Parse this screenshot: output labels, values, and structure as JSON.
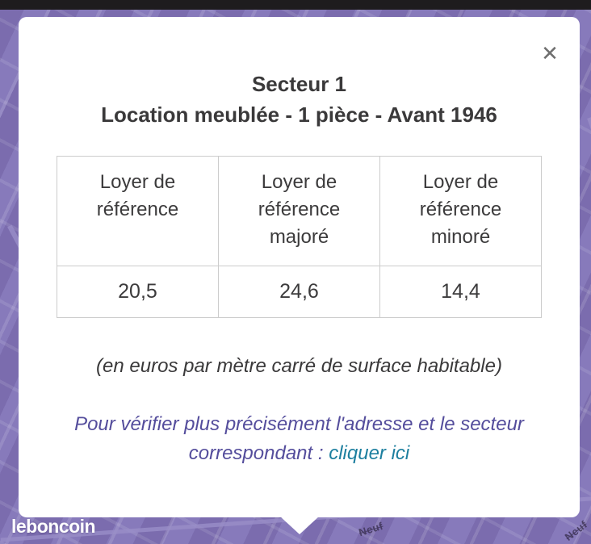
{
  "page": {
    "top_bar_color": "#1e1c1e",
    "map_base_color": "#8377b6",
    "map_block_color": "#7b6cae",
    "map_street_color": "#9a8fc8"
  },
  "map": {
    "brand": "leboncoin",
    "street_labels": [
      "Neuf",
      "Neuf"
    ]
  },
  "modal": {
    "close_label": "✕",
    "title_line1": "Secteur 1",
    "title_line2": "Location meublée - 1 pièce - Avant 1946",
    "table": {
      "headers": [
        "Loyer de référence",
        "Loyer de référence majoré",
        "Loyer de référence minoré"
      ],
      "values": [
        "20,5",
        "24,6",
        "14,4"
      ]
    },
    "unit_note": "(en euros par mètre carré de surface habitable)",
    "verify_intro": "Pour vérifier plus précisément l'adresse et le secteur correspondant :",
    "verify_link_label": "cliquer ici",
    "colors": {
      "title_text": "#3a393a",
      "table_border": "#cccccc",
      "verify_text": "#544d9c",
      "verify_link": "#1d7f9f",
      "close_icon": "#6f6f6f"
    }
  }
}
